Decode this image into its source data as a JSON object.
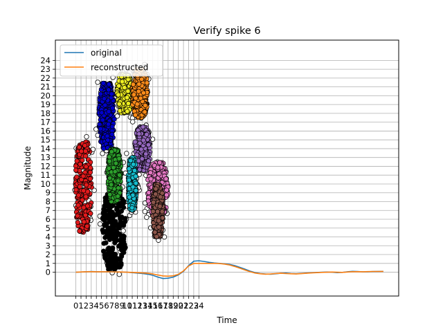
{
  "chart_data": {
    "type": "line",
    "title": "Verify spike 6",
    "xlabel": "Time",
    "ylabel": "Magnitude",
    "xlim": [
      -4,
      63
    ],
    "ylim": [
      -2.7,
      26.3
    ],
    "x_ticks": [
      0,
      1,
      2,
      3,
      4,
      5,
      6,
      7,
      8,
      9,
      10,
      11,
      12,
      13,
      14,
      15,
      16,
      17,
      18,
      19,
      20,
      21,
      22,
      23,
      24
    ],
    "y_ticks": [
      0,
      1,
      2,
      3,
      4,
      5,
      6,
      7,
      8,
      9,
      10,
      11,
      12,
      13,
      14,
      15,
      16,
      17,
      18,
      19,
      20,
      21,
      22,
      23,
      24
    ],
    "grid": true,
    "legend": {
      "placement": "top-left"
    },
    "series": [
      {
        "name": "original",
        "color": "#1f77b4",
        "x": [
          0,
          1,
          2,
          3,
          4,
          5,
          6,
          7,
          8,
          9,
          10,
          11,
          12,
          13,
          14,
          15,
          16,
          17,
          18,
          19,
          20,
          21,
          22,
          23,
          24,
          25,
          26,
          27,
          28,
          29,
          30,
          31,
          32,
          33,
          34,
          35,
          36,
          37,
          38,
          39,
          40,
          41,
          42,
          43,
          44,
          45,
          46,
          47,
          48,
          49,
          50,
          51,
          52,
          53,
          54,
          55,
          56,
          57,
          58,
          59,
          60
        ],
        "values": [
          0.0,
          0.02,
          0.05,
          0.08,
          0.06,
          0.04,
          0.05,
          0.06,
          0.05,
          0.02,
          0.0,
          -0.05,
          -0.1,
          -0.15,
          -0.22,
          -0.35,
          -0.55,
          -0.72,
          -0.68,
          -0.55,
          -0.3,
          0.1,
          0.75,
          1.25,
          1.3,
          1.22,
          1.12,
          1.05,
          1.0,
          0.95,
          0.88,
          0.75,
          0.55,
          0.35,
          0.12,
          -0.05,
          -0.15,
          -0.2,
          -0.22,
          -0.18,
          -0.12,
          -0.1,
          -0.15,
          -0.18,
          -0.14,
          -0.1,
          -0.06,
          -0.03,
          0.0,
          0.02,
          0.0,
          -0.05,
          -0.02,
          0.05,
          0.1,
          0.08,
          0.04,
          0.05,
          0.08,
          0.09,
          0.1
        ]
      },
      {
        "name": "reconstructed",
        "color": "#ff7f0e",
        "x": [
          0,
          1,
          2,
          3,
          4,
          5,
          6,
          7,
          8,
          9,
          10,
          11,
          12,
          13,
          14,
          15,
          16,
          17,
          18,
          19,
          20,
          21,
          22,
          23,
          24,
          25,
          26,
          27,
          28,
          29,
          30,
          31,
          32,
          33,
          34,
          35,
          36,
          37,
          38,
          39,
          40,
          41,
          42,
          43,
          44,
          45,
          46,
          47,
          48,
          49,
          50,
          51,
          52,
          53,
          54,
          55,
          56,
          57,
          58,
          59,
          60
        ],
        "values": [
          0.0,
          0.03,
          0.05,
          0.06,
          0.05,
          0.05,
          0.05,
          0.04,
          0.03,
          0.02,
          0.0,
          -0.02,
          -0.05,
          -0.08,
          -0.12,
          -0.2,
          -0.32,
          -0.42,
          -0.45,
          -0.4,
          -0.25,
          0.15,
          0.7,
          1.0,
          1.0,
          1.0,
          1.0,
          1.0,
          0.98,
          0.92,
          0.82,
          0.65,
          0.45,
          0.25,
          0.05,
          -0.1,
          -0.18,
          -0.22,
          -0.2,
          -0.15,
          -0.12,
          -0.15,
          -0.18,
          -0.2,
          -0.16,
          -0.12,
          -0.08,
          -0.05,
          -0.02,
          0.0,
          0.02,
          0.0,
          -0.02,
          0.02,
          0.06,
          0.06,
          0.05,
          0.07,
          0.08,
          0.08,
          0.09
        ]
      }
    ],
    "scatter_overlay": {
      "marker": "circle",
      "edge_color": "#000000",
      "clusters": [
        {
          "color": "#e41a1c",
          "x_center": 1.5,
          "x_spread": 1.6,
          "y_min": 4.5,
          "y_max": 14.8
        },
        {
          "color": "#000000",
          "x_center": 7.5,
          "x_spread": 2.3,
          "y_min": 0.3,
          "y_max": 9.5
        },
        {
          "color": "#0000cc",
          "x_center": 6.0,
          "x_spread": 1.5,
          "y_min": 14.0,
          "y_max": 21.5
        },
        {
          "color": "#2ca02c",
          "x_center": 7.5,
          "x_spread": 1.3,
          "y_min": 8.0,
          "y_max": 14.0
        },
        {
          "color": "#eeee22",
          "x_center": 9.5,
          "x_spread": 1.5,
          "y_min": 18.0,
          "y_max": 22.5
        },
        {
          "color": "#ff8c1a",
          "x_center": 12.5,
          "x_spread": 1.5,
          "y_min": 17.5,
          "y_max": 23.0
        },
        {
          "color": "#9467bd",
          "x_center": 13.0,
          "x_spread": 1.5,
          "y_min": 11.5,
          "y_max": 16.5
        },
        {
          "color": "#17becf",
          "x_center": 11.0,
          "x_spread": 0.8,
          "y_min": 7.0,
          "y_max": 13.0
        },
        {
          "color": "#e377c2",
          "x_center": 16.0,
          "x_spread": 2.0,
          "y_min": 6.5,
          "y_max": 12.5
        },
        {
          "color": "#8c564b",
          "x_center": 16.0,
          "x_spread": 1.0,
          "y_min": 4.0,
          "y_max": 10.0
        }
      ]
    }
  }
}
